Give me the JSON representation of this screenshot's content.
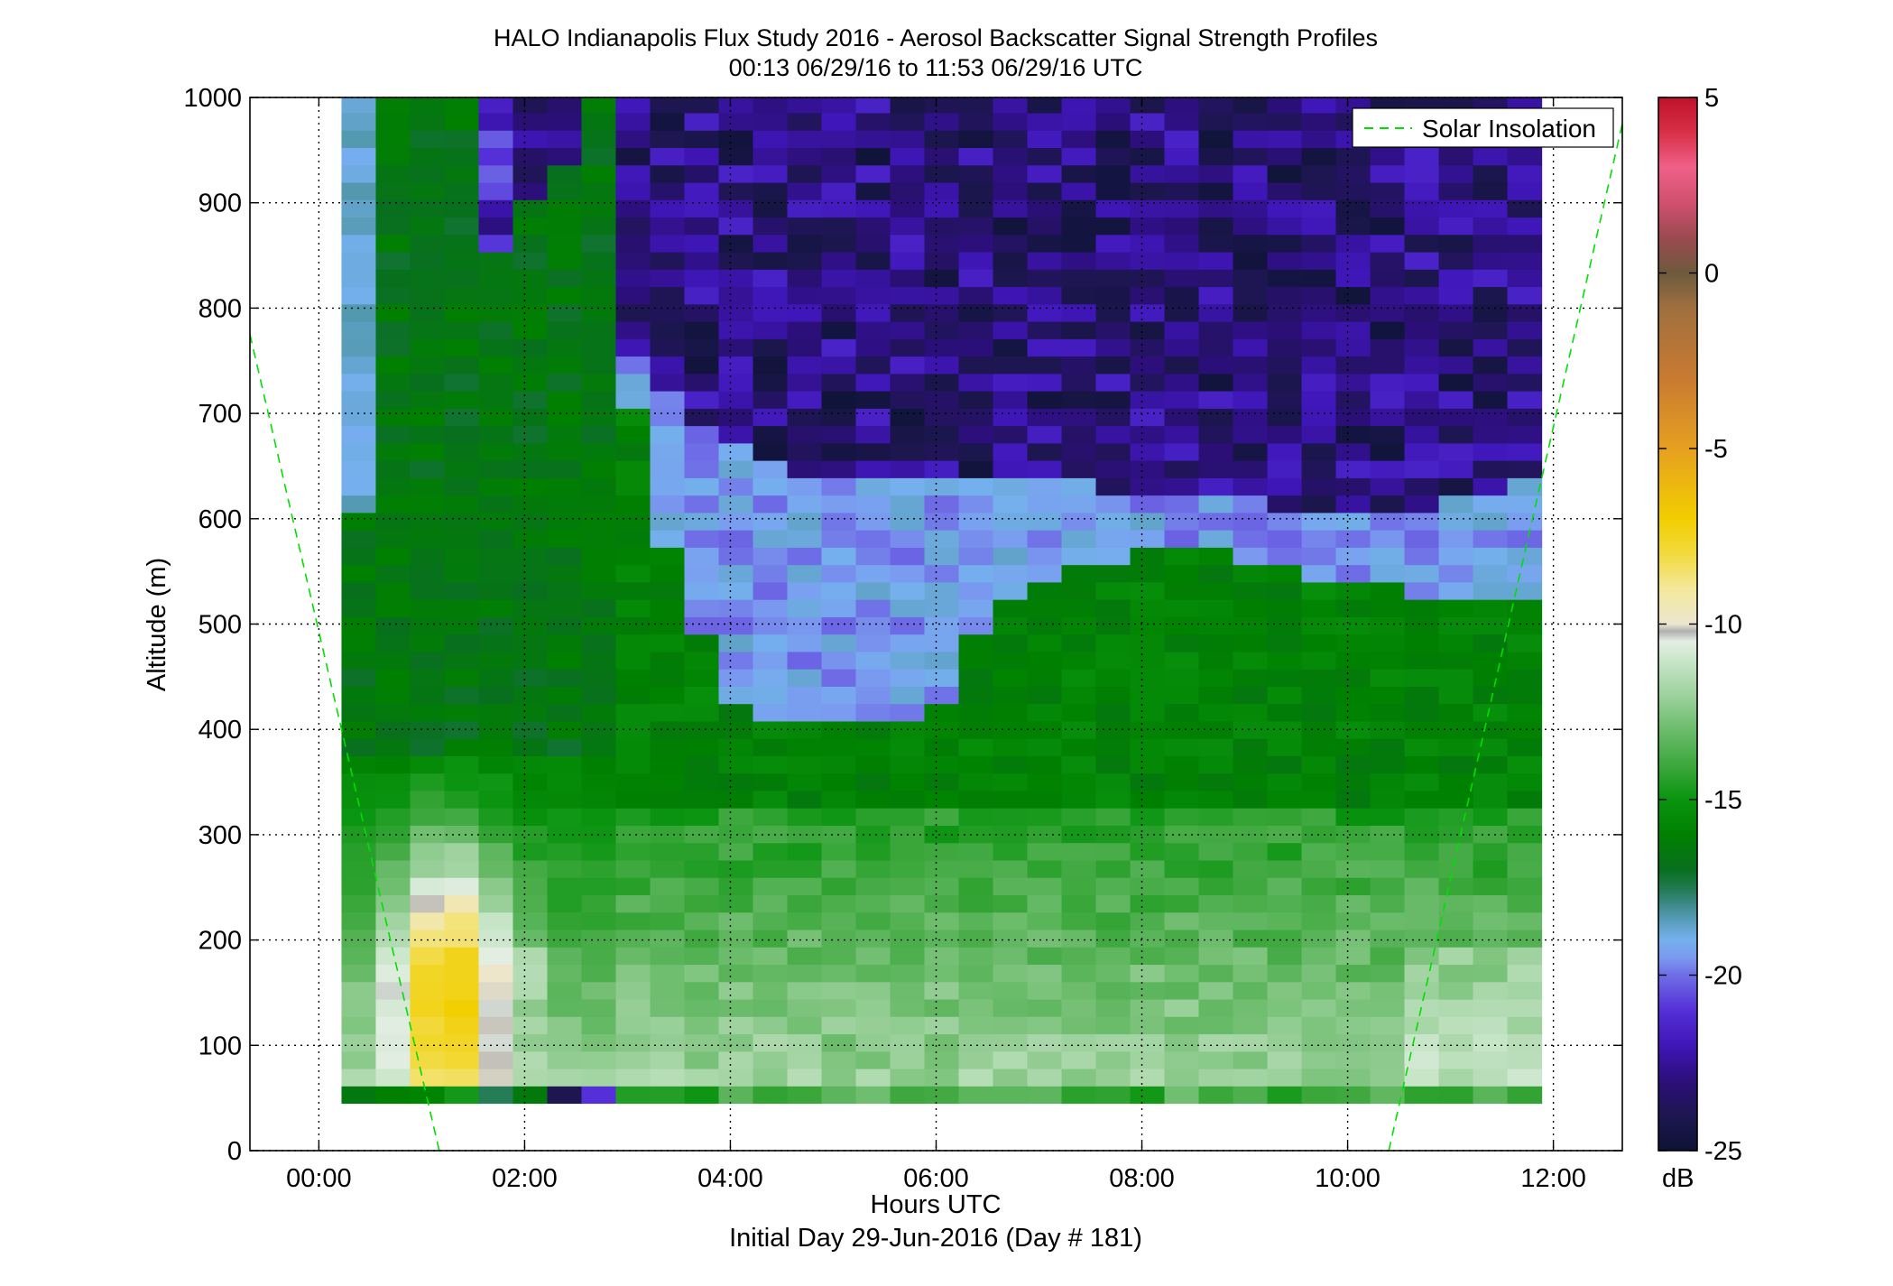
{
  "chart_data": {
    "type": "heatmap",
    "title": "HALO Indianapolis Flux Study 2016 - Aerosol Backscatter Signal Strength Profiles",
    "subtitle": "00:13 06/29/16 to 11:53 06/29/16  UTC",
    "xlabel": "Hours UTC",
    "xlabel_secondary": "Initial Day 29-Jun-2016 (Day # 181)",
    "ylabel": "Altitude (m)",
    "x_range_hours": [
      -0.67,
      12.67
    ],
    "ylim": [
      0,
      1000
    ],
    "x_ticks": [
      {
        "value": 0,
        "label": "00:00"
      },
      {
        "value": 2,
        "label": "02:00"
      },
      {
        "value": 4,
        "label": "04:00"
      },
      {
        "value": 6,
        "label": "06:00"
      },
      {
        "value": 8,
        "label": "08:00"
      },
      {
        "value": 10,
        "label": "10:00"
      },
      {
        "value": 12,
        "label": "12:00"
      }
    ],
    "y_ticks": [
      {
        "value": 0,
        "label": "0"
      },
      {
        "value": 100,
        "label": "100"
      },
      {
        "value": 200,
        "label": "200"
      },
      {
        "value": 300,
        "label": "300"
      },
      {
        "value": 400,
        "label": "400"
      },
      {
        "value": 500,
        "label": "500"
      },
      {
        "value": 600,
        "label": "600"
      },
      {
        "value": 700,
        "label": "700"
      },
      {
        "value": 800,
        "label": "800"
      },
      {
        "value": 900,
        "label": "900"
      },
      {
        "value": 1000,
        "label": "1000"
      }
    ],
    "grid": true,
    "legend": {
      "location": "top-right",
      "entries": [
        {
          "name": "Solar Insolation",
          "style": "dashed",
          "color": "#00ff00"
        }
      ]
    },
    "colorbar": {
      "label": "dB",
      "range": [
        -25,
        5
      ],
      "ticks": [
        {
          "value": 5,
          "label": "5"
        },
        {
          "value": 0,
          "label": "0"
        },
        {
          "value": -5,
          "label": "-5"
        },
        {
          "value": -10,
          "label": "-10"
        },
        {
          "value": -15,
          "label": "-15"
        },
        {
          "value": -20,
          "label": "-20"
        },
        {
          "value": -25,
          "label": "-25"
        }
      ],
      "color_stops": [
        {
          "value": -25,
          "color": "#0d1335"
        },
        {
          "value": -24,
          "color": "#1d1650"
        },
        {
          "value": -23,
          "color": "#2c0f7a"
        },
        {
          "value": -22,
          "color": "#3f16b8"
        },
        {
          "value": -21,
          "color": "#5530d8"
        },
        {
          "value": -20,
          "color": "#6f6ee6"
        },
        {
          "value": -19.5,
          "color": "#7a9aef"
        },
        {
          "value": -19,
          "color": "#75b0ee"
        },
        {
          "value": -18.5,
          "color": "#5c9fc0"
        },
        {
          "value": -18,
          "color": "#3e8a8a"
        },
        {
          "value": -17.5,
          "color": "#1f7a4c"
        },
        {
          "value": -17,
          "color": "#086f1f"
        },
        {
          "value": -16,
          "color": "#008000"
        },
        {
          "value": -15,
          "color": "#0a9410"
        },
        {
          "value": -14,
          "color": "#3ea83e"
        },
        {
          "value": -13,
          "color": "#6cbc6c"
        },
        {
          "value": -12,
          "color": "#9fd29f"
        },
        {
          "value": -11,
          "color": "#cbe6cb"
        },
        {
          "value": -10.5,
          "color": "#e4eee4"
        },
        {
          "value": -10.2,
          "color": "#b0b0b0"
        },
        {
          "value": -10,
          "color": "#ece6cf"
        },
        {
          "value": -9,
          "color": "#f4e89c"
        },
        {
          "value": -8,
          "color": "#f2da3c"
        },
        {
          "value": -7,
          "color": "#f2ce00"
        },
        {
          "value": -5,
          "color": "#e6a020"
        },
        {
          "value": -3,
          "color": "#c87a30"
        },
        {
          "value": -1,
          "color": "#a0703f"
        },
        {
          "value": 0,
          "color": "#6e5a3e"
        },
        {
          "value": 1,
          "color": "#9a4a50"
        },
        {
          "value": 2,
          "color": "#d0506e"
        },
        {
          "value": 3,
          "color": "#f06088"
        },
        {
          "value": 4,
          "color": "#d83048"
        },
        {
          "value": 5,
          "color": "#c0102a"
        }
      ]
    },
    "time_start_hours": 0.22,
    "time_end_hours": 11.88,
    "column_width_hours": 0.3333,
    "altitude_start_m": 45,
    "altitude_top_m": 1000,
    "gate_height_m": 16.5,
    "solar_insolation_segments": [
      {
        "x": [
          -0.67,
          1.17
        ],
        "y": [
          775,
          0
        ]
      },
      {
        "x": [
          10.4,
          12.67
        ],
        "y": [
          0,
          975
        ]
      }
    ]
  }
}
